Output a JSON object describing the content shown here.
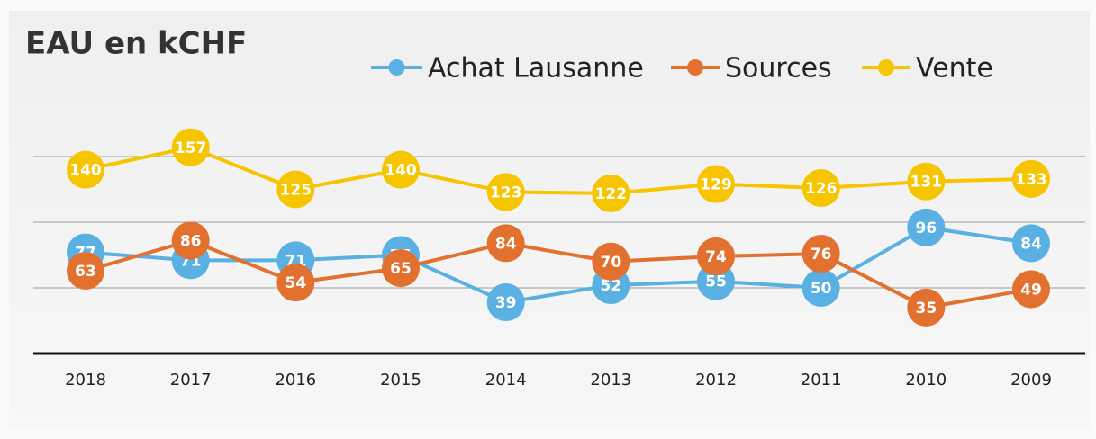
{
  "chart_data": {
    "type": "line",
    "title": "EAU en kCHF",
    "categories": [
      "2018",
      "2017",
      "2016",
      "2015",
      "2014",
      "2013",
      "2012",
      "2011",
      "2010",
      "2009"
    ],
    "series": [
      {
        "name": "Achat Lausanne",
        "color": "#5ab0e2",
        "values": [
          77,
          71,
          71,
          75,
          39,
          52,
          55,
          50,
          96,
          84
        ]
      },
      {
        "name": "Sources",
        "color": "#e2702e",
        "values": [
          63,
          86,
          54,
          65,
          84,
          70,
          74,
          76,
          35,
          49
        ]
      },
      {
        "name": "Vente",
        "color": "#f6c500",
        "values": [
          140,
          157,
          125,
          140,
          123,
          122,
          129,
          126,
          131,
          133
        ]
      }
    ],
    "ylim": [
      0,
      200
    ],
    "yticks": [
      0,
      50,
      100,
      150
    ],
    "grid": true
  }
}
